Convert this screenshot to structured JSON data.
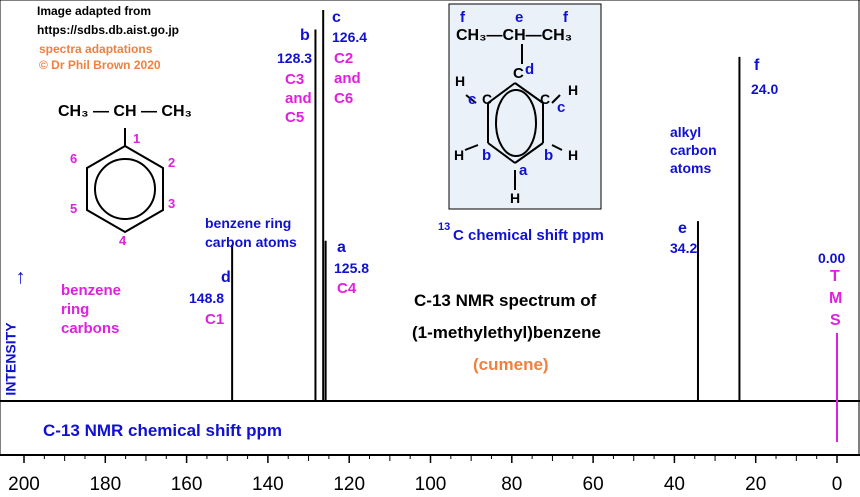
{
  "header": {
    "credit_line1": "Image adapted from",
    "credit_line2": "https://sdbs.db.aist.go.jp",
    "adapt_line1": "spectra adaptations",
    "adapt_line2": "© Dr Phil Brown 2020"
  },
  "title": {
    "line1": "C-13 NMR spectrum of",
    "line2": "(1-methylethyl)benzene",
    "line3": "(cumene)"
  },
  "axis": {
    "xlabel": "C-13  NMR chemical shift  ppm",
    "ylabel": "INTENSITY",
    "ylabel_arrow": "→",
    "center_label_sup": "13",
    "center_label_main": "C  chemical shift ppm"
  },
  "annotations": {
    "benzene_carbons": [
      "benzene",
      "ring",
      "carbons"
    ],
    "benzene_ring_atoms": [
      "benzene ring",
      "carbon atoms"
    ],
    "alkyl": [
      "alkyl",
      "carbon",
      "atoms"
    ],
    "tms": {
      "value": "0.00",
      "letters": [
        "T",
        "M",
        "S"
      ]
    }
  },
  "struct_left": {
    "top": "CH₃ — CH — CH₃",
    "nums": [
      "1",
      "2",
      "3",
      "4",
      "5",
      "6"
    ]
  },
  "struct_box": {
    "f_left": "f",
    "e": "e",
    "f_right": "f",
    "top": "CH₃—CH—CH₃",
    "cd": "C",
    "d": "d",
    "hc_left": "H",
    "c_left": "c",
    "C": "C",
    "C_right": "C",
    "c_right": "c",
    "H_right": "H",
    "b_left": "b",
    "b_right": "b",
    "a": "a",
    "H_bottom": "H"
  },
  "peak_labels": [
    {
      "letter": "d",
      "shift": "148.8",
      "carbons": [
        "C1"
      ]
    },
    {
      "letter": "b",
      "shift": "128.3",
      "carbons": [
        "C3",
        "and",
        "C5"
      ]
    },
    {
      "letter": "c",
      "shift": "126.4",
      "carbons": [
        "C2",
        "and",
        "C6"
      ]
    },
    {
      "letter": "a",
      "shift": "125.8",
      "carbons": [
        "C4"
      ]
    },
    {
      "letter": "e",
      "shift": "34.2",
      "carbons": []
    },
    {
      "letter": "f",
      "shift": "24.0",
      "carbons": []
    }
  ],
  "chart_data": {
    "type": "line",
    "title": "C-13 NMR spectrum of (1-methylethyl)benzene (cumene)",
    "xlabel": "C-13  NMR chemical shift  ppm",
    "ylabel": "INTENSITY",
    "xlim": [
      200,
      0
    ],
    "xticks": [
      200,
      180,
      160,
      140,
      120,
      100,
      80,
      60,
      40,
      20,
      0
    ],
    "peaks": [
      {
        "label": "d",
        "shift": 148.8,
        "relative_height": 0.4
      },
      {
        "label": "b",
        "shift": 128.3,
        "relative_height": 0.95
      },
      {
        "label": "c",
        "shift": 126.4,
        "relative_height": 1.0
      },
      {
        "label": "a",
        "shift": 125.8,
        "relative_height": 0.41
      },
      {
        "label": "e",
        "shift": 34.2,
        "relative_height": 0.46
      },
      {
        "label": "f",
        "shift": 24.0,
        "relative_height": 0.88
      }
    ],
    "reference": {
      "label": "TMS",
      "shift": 0.0
    }
  },
  "colors": {
    "blue": "#1010d0",
    "magenta": "#e020e0",
    "orange": "#f08040",
    "box_fill": "#eaf1f8"
  }
}
